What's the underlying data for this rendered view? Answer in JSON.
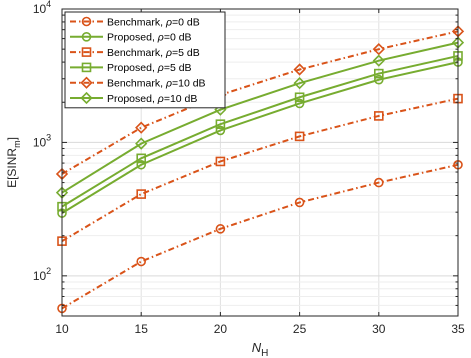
{
  "chart_data": {
    "type": "line",
    "yscale": "log",
    "x": [
      10,
      15,
      20,
      25,
      30,
      35
    ],
    "xlim": [
      10,
      35
    ],
    "ylim": [
      50,
      10000
    ],
    "xticks": [
      "10",
      "15",
      "20",
      "25",
      "30",
      "35"
    ],
    "yticks": [
      {
        "value": 100,
        "base": "10",
        "exp": "2"
      },
      {
        "value": 1000,
        "base": "10",
        "exp": "3"
      },
      {
        "value": 10000,
        "base": "10",
        "exp": "4"
      }
    ],
    "xlabel": {
      "main": "N",
      "sub": "H"
    },
    "ylabel": {
      "main": "E[SINR",
      "sub": "m",
      "end": "]"
    },
    "grid": true,
    "legend_position": "top-left",
    "series": [
      {
        "name": "Benchmark, ρ=0 dB",
        "text": "Benchmark, ",
        "rho": "ρ",
        "suffix": "=0 dB",
        "color": "#D95319",
        "dash": true,
        "marker": "circle",
        "values": [
          57,
          128,
          225,
          355,
          500,
          680
        ]
      },
      {
        "name": "Proposed, ρ=0 dB",
        "text": "Proposed, ",
        "rho": "ρ",
        "suffix": "=0 dB",
        "color": "#77AC30",
        "dash": false,
        "marker": "circle",
        "values": [
          295,
          680,
          1230,
          1960,
          2950,
          4000
        ]
      },
      {
        "name": "Benchmark, ρ=5 dB",
        "text": "Benchmark, ",
        "rho": "ρ",
        "suffix": "=5 dB",
        "color": "#D95319",
        "dash": true,
        "marker": "square",
        "values": [
          182,
          410,
          720,
          1110,
          1580,
          2130
        ]
      },
      {
        "name": "Proposed, ρ=5 dB",
        "text": "Proposed, ",
        "rho": "ρ",
        "suffix": "=5 dB",
        "color": "#77AC30",
        "dash": false,
        "marker": "square",
        "values": [
          330,
          760,
          1370,
          2180,
          3280,
          4450
        ]
      },
      {
        "name": "Benchmark, ρ=10 dB",
        "text": "Benchmark, ",
        "rho": "ρ",
        "suffix": "=10 dB",
        "color": "#D95319",
        "dash": true,
        "marker": "diamond",
        "values": [
          580,
          1290,
          2270,
          3520,
          5000,
          6800
        ]
      },
      {
        "name": "Proposed, ρ=10 dB",
        "text": "Proposed, ",
        "rho": "ρ",
        "suffix": "=10 dB",
        "color": "#77AC30",
        "dash": false,
        "marker": "diamond",
        "values": [
          420,
          980,
          1760,
          2780,
          4100,
          5600
        ]
      }
    ]
  }
}
